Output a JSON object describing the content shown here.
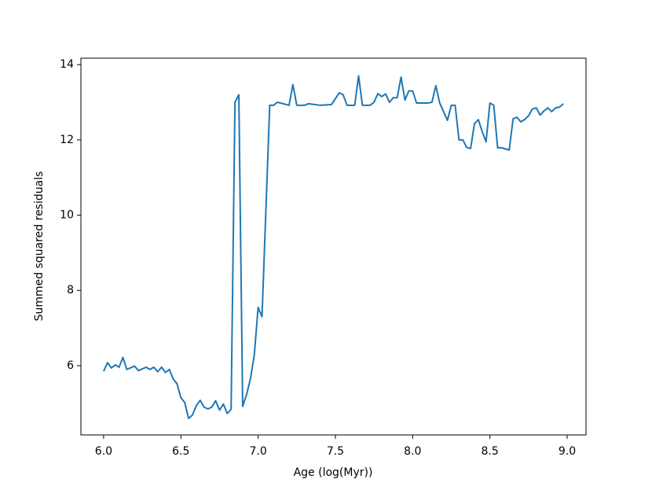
{
  "chart_data": {
    "type": "line",
    "x_label": "Age (log(Myr))",
    "y_label": "Summed squared residuals",
    "x": [
      6.0,
      6.025,
      6.05,
      6.075,
      6.1,
      6.125,
      6.15,
      6.2,
      6.225,
      6.275,
      6.3,
      6.325,
      6.35,
      6.375,
      6.4,
      6.425,
      6.45,
      6.475,
      6.5,
      6.525,
      6.55,
      6.575,
      6.6,
      6.625,
      6.65,
      6.675,
      6.7,
      6.725,
      6.75,
      6.775,
      6.8,
      6.825,
      6.85,
      6.875,
      6.9,
      6.925,
      6.95,
      6.975,
      7.0,
      7.025,
      7.075,
      7.1,
      7.125,
      7.2,
      7.225,
      7.25,
      7.3,
      7.325,
      7.4,
      7.475,
      7.525,
      7.55,
      7.575,
      7.625,
      7.65,
      7.675,
      7.725,
      7.75,
      7.775,
      7.8,
      7.825,
      7.85,
      7.875,
      7.9,
      7.925,
      7.95,
      7.975,
      8.0,
      8.025,
      8.1,
      8.125,
      8.15,
      8.175,
      8.225,
      8.25,
      8.275,
      8.3,
      8.325,
      8.35,
      8.375,
      8.4,
      8.425,
      8.45,
      8.475,
      8.5,
      8.525,
      8.55,
      8.575,
      8.625,
      8.65,
      8.675,
      8.7,
      8.725,
      8.75,
      8.775,
      8.8,
      8.825,
      8.85,
      8.875,
      8.9,
      8.925,
      8.95,
      8.975
    ],
    "series": [
      {
        "color": "#1f77b4",
        "values": [
          5.85,
          6.08,
          5.94,
          6.02,
          5.96,
          6.22,
          5.9,
          5.99,
          5.87,
          5.96,
          5.9,
          5.96,
          5.84,
          5.96,
          5.82,
          5.9,
          5.65,
          5.52,
          5.15,
          5.02,
          4.6,
          4.69,
          4.94,
          5.08,
          4.9,
          4.85,
          4.9,
          5.07,
          4.82,
          4.98,
          4.73,
          4.84,
          13.0,
          13.2,
          4.92,
          5.23,
          5.65,
          6.28,
          7.55,
          7.3,
          12.92,
          12.92,
          13.0,
          12.92,
          13.47,
          12.92,
          12.92,
          12.96,
          12.92,
          12.94,
          13.25,
          13.2,
          12.92,
          12.92,
          13.7,
          12.92,
          12.92,
          13.0,
          13.23,
          13.15,
          13.22,
          13.0,
          13.12,
          13.12,
          13.67,
          13.06,
          13.3,
          13.3,
          12.98,
          12.98,
          13.0,
          13.44,
          12.98,
          12.52,
          12.92,
          12.92,
          12.0,
          12.0,
          11.8,
          11.77,
          12.43,
          12.54,
          12.22,
          11.95,
          12.98,
          12.92,
          11.79,
          11.79,
          11.73,
          12.56,
          12.6,
          12.48,
          12.54,
          12.64,
          12.82,
          12.85,
          12.66,
          12.77,
          12.85,
          12.75,
          12.85,
          12.87,
          12.96
        ]
      }
    ],
    "xlim": [
      5.853,
      9.122
    ],
    "ylim": [
      4.16,
      14.17
    ],
    "xticks": [
      {
        "value": 6,
        "label": "6.0"
      },
      {
        "value": 6.5,
        "label": "6.5"
      },
      {
        "value": 7,
        "label": "7.0"
      },
      {
        "value": 7.5,
        "label": "7.5"
      },
      {
        "value": 8,
        "label": "8.0"
      },
      {
        "value": 8.5,
        "label": "8.5"
      },
      {
        "value": 9,
        "label": "9.0"
      }
    ],
    "yticks": [
      6,
      8,
      10,
      12,
      14
    ]
  }
}
